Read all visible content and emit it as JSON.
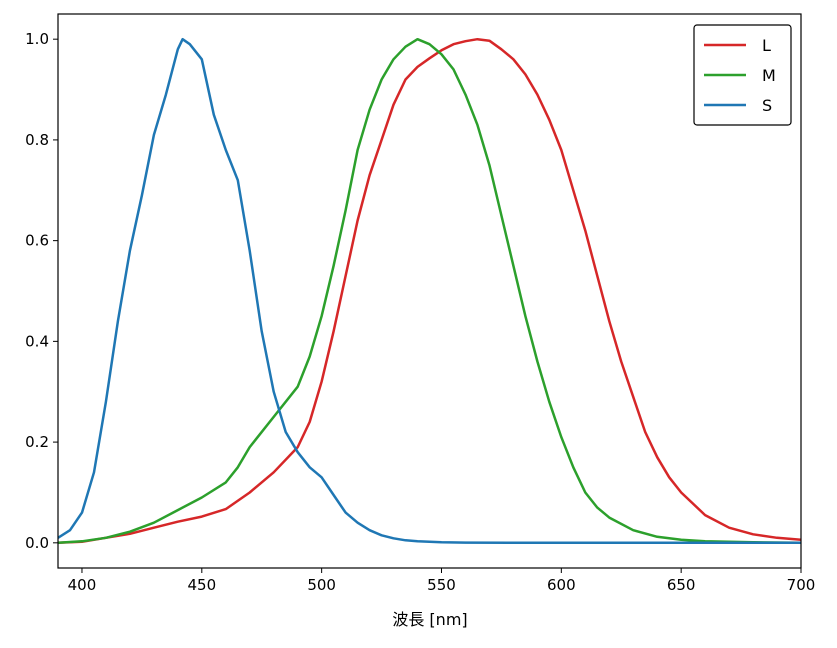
{
  "chart_data": {
    "type": "line",
    "title": "",
    "xlabel": "波長 [nm]",
    "ylabel": "",
    "xlim": [
      390,
      700
    ],
    "ylim": [
      -0.05,
      1.05
    ],
    "xticks": [
      400,
      450,
      500,
      550,
      600,
      650,
      700
    ],
    "yticks": [
      0.0,
      0.2,
      0.4,
      0.6,
      0.8,
      1.0
    ],
    "ytick_labels": [
      "0.0",
      "0.2",
      "0.4",
      "0.6",
      "0.8",
      "1.0"
    ],
    "grid": false,
    "legend_position": "top-right",
    "series": [
      {
        "name": "L",
        "color": "#d62728",
        "x": [
          390,
          400,
          410,
          420,
          430,
          440,
          450,
          460,
          470,
          480,
          490,
          495,
          500,
          505,
          510,
          515,
          520,
          525,
          530,
          535,
          540,
          545,
          550,
          555,
          560,
          565,
          570,
          575,
          580,
          585,
          590,
          595,
          600,
          605,
          610,
          615,
          620,
          625,
          630,
          635,
          640,
          645,
          650,
          660,
          670,
          680,
          690,
          700
        ],
        "y": [
          0.0,
          0.002,
          0.01,
          0.018,
          0.03,
          0.042,
          0.052,
          0.067,
          0.1,
          0.14,
          0.19,
          0.24,
          0.32,
          0.42,
          0.53,
          0.64,
          0.73,
          0.8,
          0.87,
          0.92,
          0.945,
          0.962,
          0.978,
          0.99,
          0.996,
          1.0,
          0.997,
          0.98,
          0.96,
          0.93,
          0.89,
          0.84,
          0.78,
          0.7,
          0.62,
          0.53,
          0.44,
          0.36,
          0.29,
          0.22,
          0.17,
          0.13,
          0.1,
          0.055,
          0.03,
          0.017,
          0.01,
          0.006
        ]
      },
      {
        "name": "M",
        "color": "#2ca02c",
        "x": [
          390,
          400,
          410,
          420,
          430,
          440,
          450,
          460,
          465,
          470,
          480,
          490,
          495,
          500,
          505,
          510,
          515,
          520,
          525,
          530,
          535,
          540,
          545,
          550,
          555,
          560,
          565,
          570,
          575,
          580,
          585,
          590,
          595,
          600,
          605,
          610,
          615,
          620,
          630,
          640,
          650,
          660,
          680,
          700
        ],
        "y": [
          0.0,
          0.003,
          0.01,
          0.022,
          0.04,
          0.065,
          0.09,
          0.12,
          0.15,
          0.19,
          0.25,
          0.31,
          0.37,
          0.45,
          0.55,
          0.66,
          0.78,
          0.86,
          0.92,
          0.96,
          0.985,
          1.0,
          0.99,
          0.97,
          0.94,
          0.89,
          0.83,
          0.75,
          0.65,
          0.55,
          0.45,
          0.36,
          0.28,
          0.21,
          0.15,
          0.1,
          0.07,
          0.05,
          0.025,
          0.012,
          0.006,
          0.003,
          0.001,
          0.0
        ]
      },
      {
        "name": "S",
        "color": "#1f77b4",
        "x": [
          390,
          395,
          400,
          405,
          410,
          415,
          420,
          425,
          430,
          435,
          440,
          442,
          445,
          450,
          455,
          460,
          465,
          470,
          475,
          480,
          485,
          490,
          495,
          500,
          505,
          510,
          515,
          520,
          525,
          530,
          535,
          540,
          550,
          560,
          580,
          600,
          650,
          700
        ],
        "y": [
          0.01,
          0.025,
          0.06,
          0.14,
          0.28,
          0.44,
          0.58,
          0.69,
          0.81,
          0.89,
          0.98,
          1.0,
          0.99,
          0.96,
          0.85,
          0.78,
          0.72,
          0.58,
          0.42,
          0.3,
          0.22,
          0.18,
          0.15,
          0.13,
          0.095,
          0.06,
          0.04,
          0.025,
          0.015,
          0.009,
          0.005,
          0.003,
          0.001,
          0.0005,
          0.0,
          0.0,
          0.0,
          0.0
        ]
      }
    ]
  }
}
